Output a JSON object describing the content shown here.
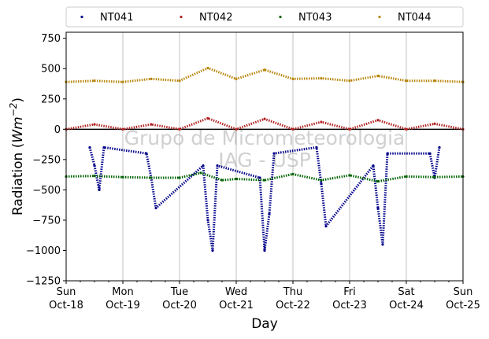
{
  "chart_data": {
    "type": "scatter",
    "xlabel": "Day",
    "ylabel": "Radiation (Wm⁻²)",
    "ylim": [
      -1250,
      800
    ],
    "yticks": [
      -1250,
      -1000,
      -750,
      -500,
      -250,
      0,
      250,
      500,
      750
    ],
    "xlim": [
      "2020-10-18",
      "2020-10-25"
    ],
    "xticks": [
      {
        "day": "Sun",
        "date": "Oct-18"
      },
      {
        "day": "Mon",
        "date": "Oct-19"
      },
      {
        "day": "Tue",
        "date": "Oct-20"
      },
      {
        "day": "Wed",
        "date": "Oct-21"
      },
      {
        "day": "Thu",
        "date": "Oct-22"
      },
      {
        "day": "Fri",
        "date": "Oct-23"
      },
      {
        "day": "Sat",
        "date": "Oct-24"
      },
      {
        "day": "Sun",
        "date": "Oct-25"
      }
    ],
    "grid": "vertical",
    "legend_placement": "top",
    "watermark": [
      "Grupo de Micrometeorologia",
      "IAG - USP"
    ],
    "series": [
      {
        "name": "NT041",
        "color": "#00008b",
        "x": [
          "2020-10-18 10:00",
          "2020-10-18 12:00",
          "2020-10-18 14:00",
          "2020-10-18 16:00",
          "2020-10-19 10:00",
          "2020-10-19 12:00",
          "2020-10-19 14:00",
          "2020-10-20 10:00",
          "2020-10-20 12:00",
          "2020-10-20 14:00",
          "2020-10-20 16:00",
          "2020-10-21 10:00",
          "2020-10-21 12:00",
          "2020-10-21 14:00",
          "2020-10-21 16:00",
          "2020-10-22 10:00",
          "2020-10-22 12:00",
          "2020-10-22 14:00",
          "2020-10-23 10:00",
          "2020-10-23 12:00",
          "2020-10-23 14:00",
          "2020-10-23 16:00",
          "2020-10-24 10:00",
          "2020-10-24 12:00",
          "2020-10-24 14:00"
        ],
        "y": [
          -150,
          -300,
          -500,
          -150,
          -200,
          -400,
          -650,
          -300,
          -750,
          -1000,
          -300,
          -400,
          -1000,
          -700,
          -200,
          -150,
          -450,
          -800,
          -300,
          -650,
          -950,
          -200,
          -200,
          -400,
          -150
        ]
      },
      {
        "name": "NT042",
        "color": "#b22222",
        "x": [
          "2020-10-18 00:00",
          "2020-10-18 12:00",
          "2020-10-19 00:00",
          "2020-10-19 12:00",
          "2020-10-20 00:00",
          "2020-10-20 12:00",
          "2020-10-21 00:00",
          "2020-10-21 12:00",
          "2020-10-22 00:00",
          "2020-10-22 12:00",
          "2020-10-23 00:00",
          "2020-10-23 12:00",
          "2020-10-24 00:00",
          "2020-10-24 12:00",
          "2020-10-25 00:00"
        ],
        "y": [
          0,
          40,
          0,
          40,
          0,
          90,
          0,
          85,
          0,
          60,
          0,
          75,
          0,
          45,
          0
        ]
      },
      {
        "name": "NT043",
        "color": "#006400",
        "x": [
          "2020-10-18 00:00",
          "2020-10-18 12:00",
          "2020-10-19 00:00",
          "2020-10-19 12:00",
          "2020-10-20 00:00",
          "2020-10-20 09:00",
          "2020-10-20 18:00",
          "2020-10-21 00:00",
          "2020-10-21 12:00",
          "2020-10-22 00:00",
          "2020-10-22 12:00",
          "2020-10-23 00:00",
          "2020-10-23 12:00",
          "2020-10-24 00:00",
          "2020-10-24 12:00",
          "2020-10-25 00:00"
        ],
        "y": [
          -390,
          -385,
          -395,
          -400,
          -400,
          -360,
          -420,
          -410,
          -420,
          -370,
          -420,
          -380,
          -430,
          -390,
          -395,
          -390
        ]
      },
      {
        "name": "NT044",
        "color": "#b8860b",
        "x": [
          "2020-10-18 00:00",
          "2020-10-18 12:00",
          "2020-10-19 00:00",
          "2020-10-19 12:00",
          "2020-10-20 00:00",
          "2020-10-20 12:00",
          "2020-10-21 00:00",
          "2020-10-21 12:00",
          "2020-10-22 00:00",
          "2020-10-22 12:00",
          "2020-10-23 00:00",
          "2020-10-23 12:00",
          "2020-10-24 00:00",
          "2020-10-24 12:00",
          "2020-10-25 00:00"
        ],
        "y": [
          390,
          400,
          390,
          415,
          400,
          505,
          415,
          490,
          415,
          420,
          400,
          440,
          400,
          400,
          390
        ]
      }
    ]
  }
}
